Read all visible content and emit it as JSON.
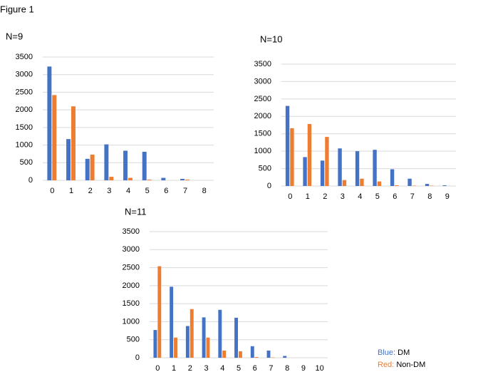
{
  "figure_label": "Figure 1",
  "legend": [
    {
      "key": "Blue:",
      "name": "DM",
      "color": "#4472c4"
    },
    {
      "key": "Red:",
      "name": "Non-DM",
      "color": "#ed7d31"
    }
  ],
  "chart_data": [
    {
      "type": "bar",
      "title": "N=9",
      "categories": [
        "0",
        "1",
        "2",
        "3",
        "4",
        "5",
        "6",
        "7",
        "8"
      ],
      "series": [
        {
          "color": "#4472c4",
          "values": [
            3230,
            1170,
            610,
            1020,
            840,
            810,
            70,
            40,
            0
          ]
        },
        {
          "color": "#ed7d31",
          "values": [
            2420,
            2100,
            730,
            100,
            70,
            20,
            0,
            20,
            0
          ]
        }
      ],
      "ylim": [
        0,
        3500
      ],
      "yticks": [
        0,
        500,
        1000,
        1500,
        2000,
        2500,
        3000,
        3500
      ],
      "grid": true
    },
    {
      "type": "bar",
      "title": "N=10",
      "categories": [
        "0",
        "1",
        "2",
        "3",
        "4",
        "5",
        "6",
        "7",
        "8",
        "9"
      ],
      "series": [
        {
          "color": "#4472c4",
          "values": [
            2300,
            830,
            730,
            1080,
            1000,
            1040,
            480,
            210,
            60,
            20
          ]
        },
        {
          "color": "#ed7d31",
          "values": [
            1660,
            1780,
            1410,
            170,
            210,
            130,
            20,
            10,
            10,
            0
          ]
        }
      ],
      "ylim": [
        0,
        3500
      ],
      "yticks": [
        0,
        500,
        1000,
        1500,
        2000,
        2500,
        3000,
        3500
      ],
      "grid": true
    },
    {
      "type": "bar",
      "title": "N=11",
      "categories": [
        "0",
        "1",
        "2",
        "3",
        "4",
        "5",
        "6",
        "7",
        "8",
        "9",
        "10"
      ],
      "series": [
        {
          "color": "#4472c4",
          "values": [
            770,
            1970,
            880,
            1120,
            1330,
            1110,
            320,
            200,
            50,
            0,
            0
          ]
        },
        {
          "color": "#ed7d31",
          "values": [
            2540,
            560,
            1350,
            560,
            200,
            180,
            20,
            10,
            0,
            0,
            0
          ]
        }
      ],
      "ylim": [
        0,
        3500
      ],
      "yticks": [
        0,
        500,
        1000,
        1500,
        2000,
        2500,
        3000,
        3500
      ],
      "grid": true
    }
  ]
}
